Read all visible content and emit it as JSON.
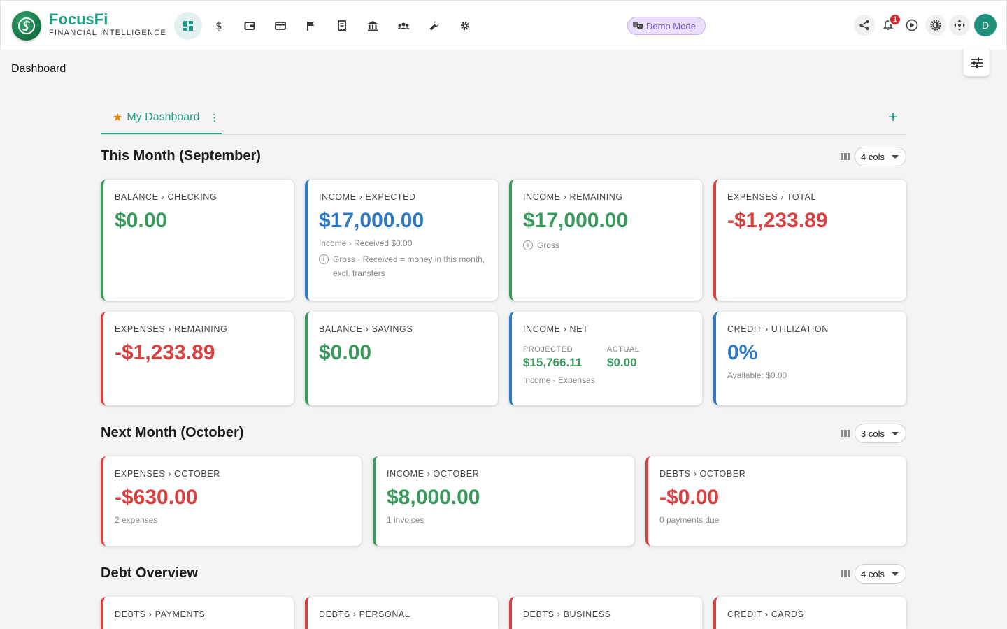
{
  "app": {
    "name": "FocusFi",
    "tagline": "FINANCIAL INTELLIGENCE"
  },
  "nav": {
    "items": [
      "dashboard-icon",
      "dollar-icon",
      "wallet-icon",
      "credit-card-icon",
      "flag-icon",
      "receipt-icon",
      "bank-icon",
      "people-icon",
      "wrench-icon",
      "gear-icon"
    ],
    "active": "dashboard-icon"
  },
  "demo_badge": "Demo Mode",
  "notifications": {
    "count": "1"
  },
  "user": {
    "initial": "D"
  },
  "page": {
    "title": "Dashboard"
  },
  "tabs": [
    {
      "label": "My Dashboard"
    }
  ],
  "sections": [
    {
      "title": "This Month (September)",
      "cols": "4 cols",
      "cards": [
        {
          "label": "BALANCE › CHECKING",
          "value": "$0.00"
        },
        {
          "label": "INCOME › EXPECTED",
          "value": "$17,000.00",
          "sub": "Income › Received $0.00",
          "note": "Gross · Received = money in this month, excl. transfers"
        },
        {
          "label": "INCOME › REMAINING",
          "value": "$17,000.00",
          "note": "Gross"
        },
        {
          "label": "EXPENSES › TOTAL",
          "value": "-$1,233.89"
        },
        {
          "label": "EXPENSES › REMAINING",
          "value": "-$1,233.89"
        },
        {
          "label": "BALANCE › SAVINGS",
          "value": "$0.00"
        },
        {
          "label": "INCOME › NET",
          "projected_label": "PROJECTED",
          "projected": "$15,766.11",
          "actual_label": "ACTUAL",
          "actual": "$0.00",
          "sub": "Income - Expenses"
        },
        {
          "label": "CREDIT › UTILIZATION",
          "value": "0%",
          "sub": "Available: $0.00"
        }
      ]
    },
    {
      "title": "Next Month (October)",
      "cols": "3 cols",
      "cards": [
        {
          "label": "EXPENSES › OCTOBER",
          "value": "-$630.00",
          "sub": "2 expenses"
        },
        {
          "label": "INCOME › OCTOBER",
          "value": "$8,000.00",
          "sub": "1 invoices"
        },
        {
          "label": "DEBTS › OCTOBER",
          "value": "-$0.00",
          "sub": "0 payments due"
        }
      ]
    },
    {
      "title": "Debt Overview",
      "cols": "4 cols",
      "cards": [
        {
          "label": "DEBTS › PAYMENTS"
        },
        {
          "label": "DEBTS › PERSONAL"
        },
        {
          "label": "DEBTS › BUSINESS"
        },
        {
          "label": "CREDIT › CARDS"
        }
      ]
    }
  ],
  "colors": {
    "accent": "#23a087",
    "positive": "#3a9a5d",
    "info": "#2f7ac6",
    "negative": "#d94141"
  }
}
